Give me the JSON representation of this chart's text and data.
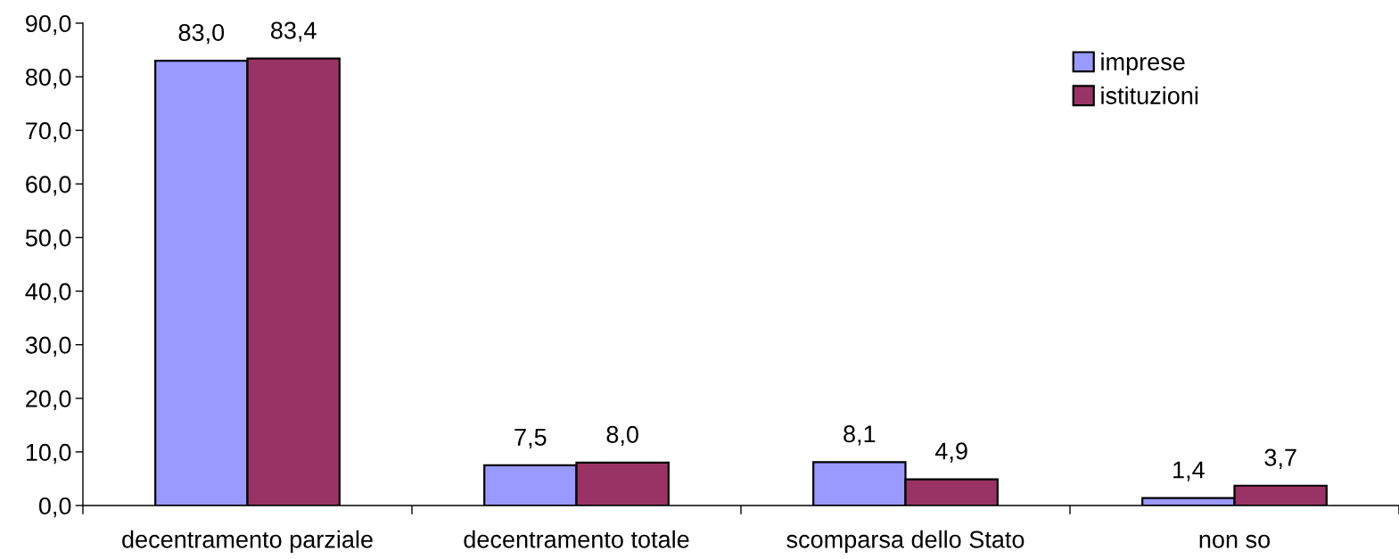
{
  "chart_data": {
    "type": "bar",
    "categories": [
      "decentramento parziale",
      "decentramento totale",
      "scomparsa dello Stato",
      "non so"
    ],
    "series": [
      {
        "name": "imprese",
        "color": "#9999ff",
        "values": [
          83.0,
          7.5,
          8.1,
          1.4
        ],
        "value_labels": [
          "83,0",
          "7,5",
          "8,1",
          "1,4"
        ]
      },
      {
        "name": "istituzioni",
        "color": "#993366",
        "values": [
          83.4,
          8.0,
          4.9,
          3.7
        ],
        "value_labels": [
          "83,4",
          "8,0",
          "4,9",
          "3,7"
        ]
      }
    ],
    "ylim": [
      0,
      90
    ],
    "yticks": [
      {
        "value": 0,
        "label": "0,0"
      },
      {
        "value": 10,
        "label": "10,0"
      },
      {
        "value": 20,
        "label": "20,0"
      },
      {
        "value": 30,
        "label": "30,0"
      },
      {
        "value": 40,
        "label": "40,0"
      },
      {
        "value": 50,
        "label": "50,0"
      },
      {
        "value": 60,
        "label": "60,0"
      },
      {
        "value": 70,
        "label": "70,0"
      },
      {
        "value": 80,
        "label": "80,0"
      },
      {
        "value": 90,
        "label": "90,0"
      }
    ],
    "legend": "top right"
  }
}
